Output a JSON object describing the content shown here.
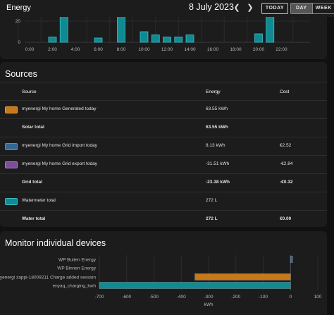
{
  "header": {
    "title": "Energy",
    "date": "8 July 2023",
    "prev_icon": "chevron-left-icon",
    "next_icon": "chevron-right-icon",
    "today_label": "TODAY",
    "periods": [
      "DAY",
      "WEEK"
    ],
    "selected_period": "DAY"
  },
  "hourly_chart": {
    "chart_data": {
      "type": "bar",
      "y_ticks": [
        "20",
        "0"
      ],
      "x_ticks": [
        "0:00",
        "2:00",
        "4:00",
        "6:00",
        "8:00",
        "10:00",
        "12:00",
        "14:00",
        "16:00",
        "18:00",
        "20:00",
        "22:00"
      ],
      "bar_color": "#0f8a93"
    }
  },
  "sources": {
    "title": "Sources",
    "columns": {
      "source": "Source",
      "energy": "Energy",
      "cost": "Cost"
    },
    "rows": [
      {
        "name": "myenergi My home Generated today",
        "energy": "63.55 kWh",
        "cost": "",
        "color": "#c6781a",
        "border": "#e59e3a"
      },
      {
        "name": "Solar total",
        "energy": "63.55 kWh",
        "cost": "",
        "total": true
      },
      {
        "name": "myenergi My home Grid import today",
        "energy": "8.13 kWh",
        "cost": "€2.52",
        "color": "#356796",
        "border": "#5c8dbd"
      },
      {
        "name": "myenergi My home Grid export today",
        "energy": "-31.51 kWh",
        "cost": "-€2.84",
        "color": "#7c4f9e",
        "border": "#a57fc4"
      },
      {
        "name": "Grid total",
        "energy": "-23.38 kWh",
        "cost": "-€0.32",
        "total": true
      },
      {
        "name": "Watermeter total",
        "energy": "272 L",
        "cost": "",
        "color": "#108b93",
        "border": "#3ab8c0"
      },
      {
        "name": "Water total",
        "energy": "272 L",
        "cost": "€0.00",
        "total": true
      }
    ]
  },
  "monitor": {
    "title": "Monitor individual devices",
    "chart_data": {
      "type": "bar",
      "orientation": "horizontal",
      "categories": [
        "WP Buiten Energy",
        "WP Binnen Energy",
        "myenergi zappi-18009211 Charge added session",
        "enyaq_charging_kwh"
      ],
      "values": [
        5,
        0,
        -350,
        -700
      ],
      "colors": [
        "#356796",
        "#6b6b6b",
        "#c6781a",
        "#108b93"
      ],
      "xlim": [
        -700,
        100
      ],
      "x_ticks": [
        -700,
        -600,
        -500,
        -400,
        -300,
        -200,
        -100,
        0,
        100
      ],
      "xlabel": "kWh"
    }
  }
}
